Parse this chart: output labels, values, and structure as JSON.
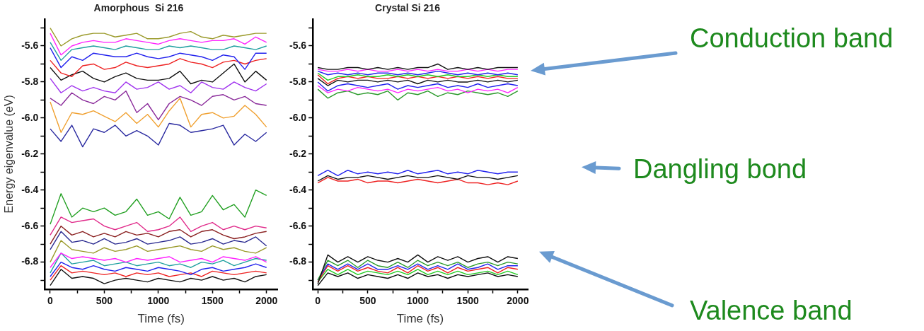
{
  "chart_data": [
    {
      "type": "line",
      "title": "Amorphous  Si 216",
      "xlabel": "Time (fs)",
      "ylabel": "Energy eigenvalue (eV)",
      "grid": false,
      "legend": false,
      "marker": "none",
      "line_style": "solid",
      "x": [
        0,
        100,
        200,
        300,
        400,
        500,
        600,
        700,
        800,
        900,
        1000,
        1100,
        1200,
        1300,
        1400,
        1500,
        1600,
        1700,
        1800,
        1900,
        2000
      ],
      "xlim": [
        -50,
        2100
      ],
      "xticks": [
        0,
        {
          "value": 250,
          "label": null
        },
        500,
        {
          "value": 750,
          "label": null
        },
        1000,
        {
          "value": 1250,
          "label": null
        },
        1500,
        {
          "value": 1750,
          "label": null
        },
        2000
      ],
      "ylim": [
        -6.95,
        -5.45
      ],
      "yticks": [
        {
          "value": -5.5,
          "label": null
        },
        {
          "value": -5.6,
          "label": "-5.6"
        },
        {
          "value": -5.7,
          "label": null
        },
        {
          "value": -5.8,
          "label": "-5.8"
        },
        {
          "value": -5.9,
          "label": null
        },
        {
          "value": -6.0,
          "label": "-6.0"
        },
        {
          "value": -6.1,
          "label": null
        },
        {
          "value": -6.2,
          "label": "-6.2"
        },
        {
          "value": -6.3,
          "label": null
        },
        {
          "value": -6.4,
          "label": "-6.4"
        },
        {
          "value": -6.5,
          "label": null
        },
        {
          "value": -6.6,
          "label": "-6.6"
        },
        {
          "value": -6.7,
          "label": null
        },
        {
          "value": -6.8,
          "label": "-6.8"
        },
        {
          "value": -6.9,
          "label": null
        }
      ],
      "series": [
        {
          "color": "#9a9a2a",
          "values": [
            -5.5,
            -5.6,
            -5.56,
            -5.54,
            -5.53,
            -5.53,
            -5.55,
            -5.54,
            -5.53,
            -5.56,
            -5.56,
            -5.55,
            -5.53,
            -5.52,
            -5.55,
            -5.56,
            -5.54,
            -5.55,
            -5.54,
            -5.53,
            -5.53
          ]
        },
        {
          "color": "#ff22ff",
          "values": [
            -5.53,
            -5.65,
            -5.6,
            -5.58,
            -5.57,
            -5.58,
            -5.58,
            -5.56,
            -5.57,
            -5.58,
            -5.59,
            -5.57,
            -5.56,
            -5.57,
            -5.58,
            -5.57,
            -5.57,
            -5.56,
            -5.59,
            -5.55,
            -5.58
          ]
        },
        {
          "color": "#20a0a0",
          "values": [
            -5.58,
            -5.68,
            -5.62,
            -5.61,
            -5.6,
            -5.61,
            -5.62,
            -5.6,
            -5.61,
            -5.62,
            -5.62,
            -5.6,
            -5.61,
            -5.6,
            -5.61,
            -5.62,
            -5.62,
            -5.6,
            -5.61,
            -5.62,
            -5.6
          ]
        },
        {
          "color": "#2222ee",
          "values": [
            -5.61,
            -5.72,
            -5.66,
            -5.68,
            -5.64,
            -5.65,
            -5.66,
            -5.66,
            -5.64,
            -5.66,
            -5.67,
            -5.66,
            -5.64,
            -5.65,
            -5.66,
            -5.68,
            -5.65,
            -5.66,
            -5.73,
            -5.64,
            -5.64
          ]
        },
        {
          "color": "#ee2222",
          "values": [
            -5.68,
            -5.75,
            -5.77,
            -5.71,
            -5.7,
            -5.73,
            -5.72,
            -5.69,
            -5.71,
            -5.72,
            -5.71,
            -5.7,
            -5.67,
            -5.69,
            -5.7,
            -5.72,
            -5.69,
            -5.68,
            -5.7,
            -5.68,
            -5.67
          ]
        },
        {
          "color": "#111111",
          "values": [
            -5.72,
            -5.79,
            -5.76,
            -5.74,
            -5.78,
            -5.8,
            -5.77,
            -5.75,
            -5.78,
            -5.79,
            -5.79,
            -5.78,
            -5.74,
            -5.81,
            -5.79,
            -5.8,
            -5.75,
            -5.7,
            -5.8,
            -5.74,
            -5.79
          ]
        },
        {
          "color": "#a033ee",
          "values": [
            -5.78,
            -5.86,
            -5.82,
            -5.85,
            -5.83,
            -5.85,
            -5.86,
            -5.8,
            -5.84,
            -5.83,
            -5.8,
            -5.84,
            -5.82,
            -5.86,
            -5.8,
            -5.83,
            -5.84,
            -5.8,
            -5.83,
            -5.85,
            -5.81
          ]
        },
        {
          "color": "#8a2a9a",
          "values": [
            -5.89,
            -5.93,
            -5.86,
            -5.9,
            -5.92,
            -5.88,
            -5.9,
            -5.85,
            -5.97,
            -5.92,
            -6.01,
            -5.92,
            -5.88,
            -5.9,
            -5.93,
            -5.88,
            -5.87,
            -5.9,
            -5.88,
            -5.92,
            -5.93
          ]
        },
        {
          "color": "#f0a030",
          "values": [
            -5.91,
            -6.08,
            -5.97,
            -5.98,
            -5.96,
            -5.99,
            -6.02,
            -5.97,
            -6.03,
            -5.98,
            -6.05,
            -5.96,
            -5.89,
            -6.05,
            -5.98,
            -5.97,
            -6.0,
            -5.99,
            -5.93,
            -5.98,
            -6.05
          ]
        },
        {
          "color": "#2a2aa0",
          "values": [
            -6.06,
            -6.13,
            -6.04,
            -6.16,
            -6.06,
            -6.08,
            -6.04,
            -6.1,
            -6.07,
            -6.1,
            -6.15,
            -6.03,
            -6.04,
            -6.08,
            -6.07,
            -6.06,
            -6.04,
            -6.15,
            -6.09,
            -6.13,
            -6.08
          ]
        },
        {
          "color": "#22a022",
          "values": [
            -6.59,
            -6.42,
            -6.55,
            -6.5,
            -6.52,
            -6.5,
            -6.54,
            -6.52,
            -6.45,
            -6.54,
            -6.52,
            -6.56,
            -6.44,
            -6.54,
            -6.52,
            -6.43,
            -6.51,
            -6.48,
            -6.55,
            -6.4,
            -6.43
          ]
        },
        {
          "color": "#e02a8a",
          "values": [
            -6.65,
            -6.55,
            -6.58,
            -6.57,
            -6.56,
            -6.6,
            -6.62,
            -6.6,
            -6.58,
            -6.63,
            -6.62,
            -6.6,
            -6.55,
            -6.63,
            -6.6,
            -6.58,
            -6.62,
            -6.6,
            -6.62,
            -6.6,
            -6.61
          ]
        },
        {
          "color": "#8a2020",
          "values": [
            -6.7,
            -6.6,
            -6.65,
            -6.63,
            -6.66,
            -6.64,
            -6.66,
            -6.63,
            -6.65,
            -6.64,
            -6.66,
            -6.63,
            -6.62,
            -6.66,
            -6.63,
            -6.62,
            -6.65,
            -6.67,
            -6.66,
            -6.64,
            -6.63
          ]
        },
        {
          "color": "#2a2a90",
          "values": [
            -6.73,
            -6.63,
            -6.69,
            -6.68,
            -6.7,
            -6.67,
            -6.7,
            -6.69,
            -6.67,
            -6.7,
            -6.69,
            -6.68,
            -6.66,
            -6.7,
            -6.69,
            -6.67,
            -6.7,
            -6.68,
            -6.69,
            -6.66,
            -6.71
          ]
        },
        {
          "color": "#9a9a2a",
          "values": [
            -6.8,
            -6.68,
            -6.73,
            -6.74,
            -6.75,
            -6.72,
            -6.74,
            -6.73,
            -6.71,
            -6.74,
            -6.73,
            -6.72,
            -6.71,
            -6.73,
            -6.74,
            -6.71,
            -6.73,
            -6.72,
            -6.74,
            -6.75,
            -6.72
          ]
        },
        {
          "color": "#ff22ff",
          "values": [
            -6.83,
            -6.75,
            -6.78,
            -6.77,
            -6.78,
            -6.79,
            -6.78,
            -6.8,
            -6.78,
            -6.79,
            -6.78,
            -6.77,
            -6.8,
            -6.79,
            -6.78,
            -6.8,
            -6.77,
            -6.78,
            -6.79,
            -6.77,
            -6.8
          ]
        },
        {
          "color": "#20a0a0",
          "values": [
            -6.86,
            -6.75,
            -6.81,
            -6.8,
            -6.79,
            -6.82,
            -6.81,
            -6.8,
            -6.82,
            -6.81,
            -6.8,
            -6.82,
            -6.81,
            -6.83,
            -6.8,
            -6.81,
            -6.79,
            -6.82,
            -6.8,
            -6.78,
            -6.79
          ]
        },
        {
          "color": "#2222ee",
          "values": [
            -6.88,
            -6.8,
            -6.83,
            -6.84,
            -6.82,
            -6.84,
            -6.85,
            -6.83,
            -6.84,
            -6.85,
            -6.83,
            -6.84,
            -6.85,
            -6.87,
            -6.84,
            -6.83,
            -6.85,
            -6.84,
            -6.83,
            -6.81,
            -6.83
          ]
        },
        {
          "color": "#ee2222",
          "values": [
            -6.9,
            -6.82,
            -6.86,
            -6.85,
            -6.86,
            -6.87,
            -6.86,
            -6.88,
            -6.86,
            -6.87,
            -6.86,
            -6.88,
            -6.87,
            -6.86,
            -6.88,
            -6.85,
            -6.86,
            -6.87,
            -6.86,
            -6.85,
            -6.86
          ]
        },
        {
          "color": "#111111",
          "values": [
            -6.93,
            -6.84,
            -6.89,
            -6.88,
            -6.89,
            -6.92,
            -6.9,
            -6.89,
            -6.9,
            -6.91,
            -6.89,
            -6.9,
            -6.91,
            -6.89,
            -6.9,
            -6.88,
            -6.9,
            -6.89,
            -6.91,
            -6.88,
            -6.87
          ]
        }
      ]
    },
    {
      "type": "line",
      "title": "Crystal Si 216",
      "xlabel": "Time (fs)",
      "grid": false,
      "legend": false,
      "marker": "none",
      "line_style": "solid",
      "annotations": [
        "Conduction band",
        "Dangling bond",
        "Valence band"
      ],
      "x": [
        0,
        100,
        200,
        300,
        400,
        500,
        600,
        700,
        800,
        900,
        1000,
        1100,
        1200,
        1300,
        1400,
        1500,
        1600,
        1700,
        1800,
        1900,
        2000
      ],
      "xlim": [
        -50,
        2100
      ],
      "xticks": [
        0,
        {
          "value": 250,
          "label": null
        },
        500,
        {
          "value": 750,
          "label": null
        },
        1000,
        {
          "value": 1250,
          "label": null
        },
        1500,
        {
          "value": 1750,
          "label": null
        },
        2000
      ],
      "ylim": [
        -6.95,
        -5.45
      ],
      "yticks": [
        {
          "value": -5.5,
          "label": null
        },
        {
          "value": -5.6,
          "label": "-5.6"
        },
        {
          "value": -5.7,
          "label": null
        },
        {
          "value": -5.8,
          "label": "-5.8"
        },
        {
          "value": -5.9,
          "label": null
        },
        {
          "value": -6.0,
          "label": "-6.0"
        },
        {
          "value": -6.1,
          "label": null
        },
        {
          "value": -6.2,
          "label": "-6.2"
        },
        {
          "value": -6.3,
          "label": null
        },
        {
          "value": -6.4,
          "label": "-6.4"
        },
        {
          "value": -6.5,
          "label": null
        },
        {
          "value": -6.6,
          "label": "-6.6"
        },
        {
          "value": -6.7,
          "label": null
        },
        {
          "value": -6.8,
          "label": "-6.8"
        },
        {
          "value": -6.9,
          "label": null
        }
      ],
      "series": [
        {
          "color": "#111111",
          "values": [
            -5.72,
            -5.73,
            -5.73,
            -5.72,
            -5.72,
            -5.73,
            -5.72,
            -5.73,
            -5.72,
            -5.73,
            -5.72,
            -5.72,
            -5.7,
            -5.73,
            -5.72,
            -5.73,
            -5.72,
            -5.73,
            -5.72,
            -5.72,
            -5.72
          ]
        },
        {
          "color": "#ff22ff",
          "values": [
            -5.73,
            -5.74,
            -5.74,
            -5.73,
            -5.74,
            -5.73,
            -5.74,
            -5.74,
            -5.73,
            -5.74,
            -5.73,
            -5.74,
            -5.73,
            -5.74,
            -5.74,
            -5.73,
            -5.74,
            -5.73,
            -5.74,
            -5.73,
            -5.73
          ]
        },
        {
          "color": "#2222ee",
          "values": [
            -5.74,
            -5.76,
            -5.75,
            -5.76,
            -5.75,
            -5.76,
            -5.75,
            -5.75,
            -5.76,
            -5.75,
            -5.76,
            -5.75,
            -5.74,
            -5.75,
            -5.76,
            -5.75,
            -5.76,
            -5.75,
            -5.76,
            -5.75,
            -5.76
          ]
        },
        {
          "color": "#22cc22",
          "values": [
            -5.75,
            -5.79,
            -5.77,
            -5.77,
            -5.76,
            -5.77,
            -5.77,
            -5.76,
            -5.77,
            -5.76,
            -5.77,
            -5.76,
            -5.77,
            -5.76,
            -5.77,
            -5.77,
            -5.76,
            -5.77,
            -5.76,
            -5.77,
            -5.77
          ]
        },
        {
          "color": "#ee2222",
          "values": [
            -5.76,
            -5.81,
            -5.78,
            -5.77,
            -5.78,
            -5.77,
            -5.78,
            -5.78,
            -5.77,
            -5.78,
            -5.77,
            -5.78,
            -5.77,
            -5.78,
            -5.77,
            -5.78,
            -5.77,
            -5.78,
            -5.77,
            -5.78,
            -5.78
          ]
        },
        {
          "color": "#111111",
          "values": [
            -5.78,
            -5.82,
            -5.79,
            -5.8,
            -5.79,
            -5.79,
            -5.8,
            -5.79,
            -5.8,
            -5.79,
            -5.81,
            -5.79,
            -5.8,
            -5.79,
            -5.8,
            -5.8,
            -5.79,
            -5.8,
            -5.79,
            -5.8,
            -5.79
          ]
        },
        {
          "color": "#2222ee",
          "values": [
            -5.8,
            -5.85,
            -5.82,
            -5.81,
            -5.82,
            -5.83,
            -5.82,
            -5.81,
            -5.84,
            -5.82,
            -5.83,
            -5.82,
            -5.81,
            -5.83,
            -5.82,
            -5.83,
            -5.81,
            -5.83,
            -5.82,
            -5.81,
            -5.82
          ]
        },
        {
          "color": "#ff22ff",
          "values": [
            -5.82,
            -5.86,
            -5.84,
            -5.85,
            -5.83,
            -5.84,
            -5.85,
            -5.84,
            -5.86,
            -5.84,
            -5.85,
            -5.84,
            -5.83,
            -5.85,
            -5.84,
            -5.86,
            -5.84,
            -5.85,
            -5.84,
            -5.86,
            -5.83
          ]
        },
        {
          "color": "#2a9a2a",
          "values": [
            -5.84,
            -5.89,
            -5.86,
            -5.85,
            -5.87,
            -5.86,
            -5.87,
            -5.85,
            -5.9,
            -5.86,
            -5.87,
            -5.85,
            -5.88,
            -5.86,
            -5.87,
            -5.85,
            -5.86,
            -5.87,
            -5.86,
            -5.88,
            -5.85
          ]
        },
        {
          "color": "#2222ee",
          "values": [
            -6.32,
            -6.29,
            -6.32,
            -6.29,
            -6.31,
            -6.3,
            -6.31,
            -6.3,
            -6.31,
            -6.29,
            -6.31,
            -6.3,
            -6.29,
            -6.31,
            -6.3,
            -6.31,
            -6.29,
            -6.3,
            -6.31,
            -6.3,
            -6.3
          ]
        },
        {
          "color": "#111111",
          "values": [
            -6.35,
            -6.32,
            -6.34,
            -6.33,
            -6.33,
            -6.32,
            -6.33,
            -6.34,
            -6.33,
            -6.32,
            -6.33,
            -6.33,
            -6.32,
            -6.33,
            -6.34,
            -6.32,
            -6.33,
            -6.33,
            -6.34,
            -6.33,
            -6.32
          ]
        },
        {
          "color": "#ee2222",
          "values": [
            -6.36,
            -6.33,
            -6.35,
            -6.35,
            -6.34,
            -6.36,
            -6.35,
            -6.35,
            -6.36,
            -6.35,
            -6.34,
            -6.35,
            -6.36,
            -6.35,
            -6.34,
            -6.36,
            -6.36,
            -6.37,
            -6.36,
            -6.37,
            -6.35
          ]
        },
        {
          "color": "#111111",
          "values": [
            -6.92,
            -6.76,
            -6.8,
            -6.77,
            -6.8,
            -6.77,
            -6.79,
            -6.8,
            -6.78,
            -6.8,
            -6.76,
            -6.8,
            -6.77,
            -6.79,
            -6.77,
            -6.8,
            -6.78,
            -6.77,
            -6.8,
            -6.77,
            -6.78
          ]
        },
        {
          "color": "#2a9a2a",
          "values": [
            -6.9,
            -6.79,
            -6.82,
            -6.79,
            -6.83,
            -6.79,
            -6.82,
            -6.83,
            -6.8,
            -6.83,
            -6.79,
            -6.82,
            -6.8,
            -6.82,
            -6.8,
            -6.83,
            -6.81,
            -6.8,
            -6.82,
            -6.8,
            -6.81
          ]
        },
        {
          "color": "#2222ee",
          "values": [
            -6.9,
            -6.81,
            -6.84,
            -6.81,
            -6.84,
            -6.81,
            -6.84,
            -6.84,
            -6.82,
            -6.84,
            -6.81,
            -6.84,
            -6.82,
            -6.84,
            -6.81,
            -6.84,
            -6.83,
            -6.81,
            -6.84,
            -6.82,
            -6.82
          ]
        },
        {
          "color": "#ee2222",
          "values": [
            -6.91,
            -6.82,
            -6.85,
            -6.82,
            -6.85,
            -6.83,
            -6.85,
            -6.86,
            -6.83,
            -6.86,
            -6.82,
            -6.85,
            -6.83,
            -6.86,
            -6.83,
            -6.85,
            -6.84,
            -6.83,
            -6.86,
            -6.83,
            -6.84
          ]
        },
        {
          "color": "#22cc22",
          "values": [
            -6.91,
            -6.84,
            -6.87,
            -6.84,
            -6.87,
            -6.85,
            -6.86,
            -6.87,
            -6.85,
            -6.87,
            -6.84,
            -6.87,
            -6.85,
            -6.87,
            -6.85,
            -6.87,
            -6.86,
            -6.85,
            -6.87,
            -6.85,
            -6.87
          ]
        },
        {
          "color": "#111111",
          "values": [
            -6.93,
            -6.86,
            -6.88,
            -6.86,
            -6.89,
            -6.87,
            -6.88,
            -6.89,
            -6.87,
            -6.89,
            -6.86,
            -6.88,
            -6.87,
            -6.89,
            -6.87,
            -6.88,
            -6.87,
            -6.86,
            -6.88,
            -6.87,
            -6.88
          ]
        }
      ]
    }
  ]
}
